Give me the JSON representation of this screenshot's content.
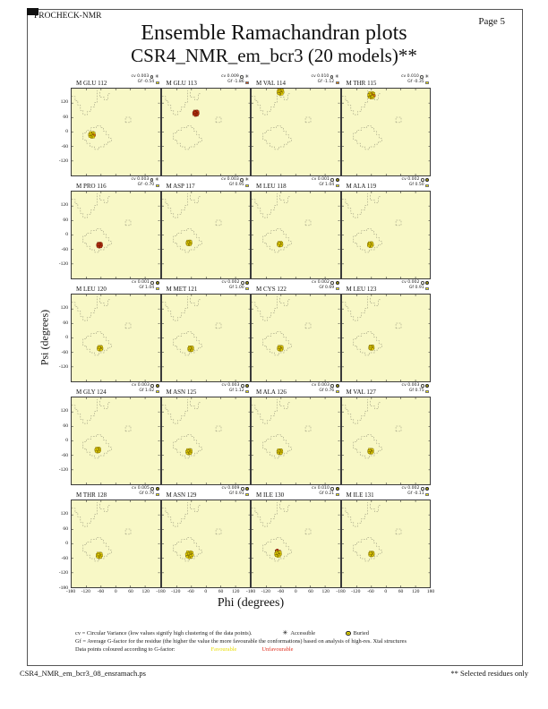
{
  "page": {
    "app_name": "PROCHECK-NMR",
    "page_label": "Page  5",
    "title": "Ensemble Ramachandran plots",
    "subtitle": "CSR4_NMR_em_bcr3 (20 models)**",
    "footer_filename": "CSR4_NMR_em_bcr3_08_ensramach.ps",
    "footer_note": "** Selected residues only"
  },
  "axes": {
    "x_label": "Phi (degrees)",
    "y_label": "Psi (degrees)",
    "x_ticks": [
      -180,
      -120,
      -60,
      0,
      60,
      120
    ],
    "x_end_tick": 180,
    "y_ticks": [
      120,
      60,
      0,
      -60,
      -120
    ],
    "y_end_tick": -180
  },
  "legend": {
    "line1": "cv = Circular Variance (low values signify high clustering of the data points).",
    "accessible_label": "Accessible",
    "buried_label": "Buried",
    "line2": "Gf = Average G-factor for the residue (the higher the value the more favourable the conformations) based on analysis of high-res. Xtal structures",
    "line3": "Data points coloured according to G-factor:",
    "favourable_label": "Favourable",
    "unfavourable_label": "Unfavourable",
    "favourable_color": "#e8dc00",
    "unfavourable_color": "#e03020"
  },
  "colors": {
    "plot_background": "#f8f8c6",
    "contour": "#8a8a72",
    "favourable_point": "#e3cf00",
    "unfavourable_point": "#bf3410",
    "gf_yellow": "#f2ea00",
    "gf_orange": "#ee8500",
    "gf_red": "#dd4a10"
  },
  "chart_data": {
    "type": "scatter",
    "title": "Ensemble Ramachandran plots",
    "subtitle": "CSR4_NMR_em_bcr3 (20 models)**",
    "xlabel": "Phi (degrees)",
    "ylabel": "Psi (degrees)",
    "xlim": [
      -180,
      180
    ],
    "ylim": [
      -180,
      180
    ],
    "grid": false,
    "layout": "4 columns x 5 rows of per-residue subplots",
    "subplots": [
      {
        "label": "M GLU 112",
        "cv_text": "cv 0.003",
        "gf_text": "Gf -0.54",
        "gf_color": "#f2ea00",
        "access": "accessible",
        "blob": {
          "phi": -97,
          "psi": -12,
          "style": "yellow-orange",
          "spread": 1.1
        }
      },
      {
        "label": "M GLU 113",
        "cv_text": "cv 0.009",
        "gf_text": "Gf -1.86",
        "gf_color": "#dd4a10",
        "access": "accessible",
        "blob": {
          "phi": -42,
          "psi": 78,
          "style": "red",
          "spread": 1.0
        }
      },
      {
        "label": "M VAL 114",
        "cv_text": "cv 0.010",
        "gf_text": "Gf -1.12",
        "gf_color": "#ee8500",
        "access": "accessible",
        "blob": {
          "phi": -62,
          "psi": 166,
          "style": "mixed",
          "spread": 1.1
        }
      },
      {
        "label": "M THR 115",
        "cv_text": "cv 0.010",
        "gf_text": "Gf -0.35",
        "gf_color": "#f2ea00",
        "access": "accessible",
        "blob": {
          "phi": -60,
          "psi": 152,
          "style": "yellow-orange",
          "spread": 1.25
        }
      },
      {
        "label": "M PRO 116",
        "cv_text": "cv 0.003",
        "gf_text": "Gf -0.70",
        "gf_color": "#f2ea00",
        "access": "accessible",
        "blob": {
          "phi": -66,
          "psi": -42,
          "style": "red",
          "spread": 0.9
        }
      },
      {
        "label": "M ASP 117",
        "cv_text": "cv 0.003",
        "gf_text": "Gf 0.95",
        "gf_color": "#f2ea00",
        "access": "accessible",
        "blob": {
          "phi": -70,
          "psi": -33,
          "style": "yellow",
          "spread": 0.9
        }
      },
      {
        "label": "M LEU 118",
        "cv_text": "cv 0.001",
        "gf_text": "Gf 1.04",
        "gf_color": "#f2ea00",
        "access": "buried",
        "blob": {
          "phi": -64,
          "psi": -38,
          "style": "yellow",
          "spread": 0.85
        }
      },
      {
        "label": "M ALA 119",
        "cv_text": "cv 0.002",
        "gf_text": "Gf 0.50",
        "gf_color": "#f2ea00",
        "access": "buried",
        "blob": {
          "phi": -64,
          "psi": -40,
          "style": "yellow",
          "spread": 0.9
        }
      },
      {
        "label": "M LEU 120",
        "cv_text": "cv 0.001",
        "gf_text": "Gf 1.04",
        "gf_color": "#f2ea00",
        "access": "buried",
        "blob": {
          "phi": -64,
          "psi": -43,
          "style": "yellow",
          "spread": 0.85
        }
      },
      {
        "label": "M MET 121",
        "cv_text": "cv 0.002",
        "gf_text": "Gf 1.00",
        "gf_color": "#f2ea00",
        "access": "buried",
        "blob": {
          "phi": -63,
          "psi": -45,
          "style": "yellow",
          "spread": 0.9
        }
      },
      {
        "label": "M CYS 122",
        "cv_text": "cv 0.002",
        "gf_text": "Gf 0.69",
        "gf_color": "#f2ea00",
        "access": "buried",
        "blob": {
          "phi": -63,
          "psi": -43,
          "style": "yellow",
          "spread": 0.9
        }
      },
      {
        "label": "M LEU 123",
        "cv_text": "cv 0.002",
        "gf_text": "Gf 0.91",
        "gf_color": "#f2ea00",
        "access": "buried",
        "blob": {
          "phi": -60,
          "psi": -40,
          "style": "yellow",
          "spread": 0.8
        }
      },
      {
        "label": "M GLY 124",
        "cv_text": "cv 0.003",
        "gf_text": "Gf 1.02",
        "gf_color": "#f2ea00",
        "access": "buried",
        "blob": {
          "phi": -73,
          "psi": -38,
          "style": "yellow",
          "spread": 0.9
        }
      },
      {
        "label": "M ASN 125",
        "cv_text": "cv 0.003",
        "gf_text": "Gf 1.12",
        "gf_color": "#f2ea00",
        "access": "buried",
        "blob": {
          "phi": -70,
          "psi": -45,
          "style": "yellow",
          "spread": 1.0
        }
      },
      {
        "label": "M ALA 126",
        "cv_text": "cv 0.003",
        "gf_text": "Gf 0.76",
        "gf_color": "#f2ea00",
        "access": "buried",
        "blob": {
          "phi": -65,
          "psi": -45,
          "style": "yellow",
          "spread": 0.9
        }
      },
      {
        "label": "M VAL 127",
        "cv_text": "cv 0.003",
        "gf_text": "Gf 0.75",
        "gf_color": "#f2ea00",
        "access": "buried",
        "blob": {
          "phi": -63,
          "psi": -43,
          "style": "yellow",
          "spread": 0.9
        }
      },
      {
        "label": "M THR 128",
        "cv_text": "cv 0.005",
        "gf_text": "Gf 0.70",
        "gf_color": "#f2ea00",
        "access": "buried",
        "blob": {
          "phi": -67,
          "psi": -48,
          "style": "yellow",
          "spread": 1.0
        }
      },
      {
        "label": "M ASN 129",
        "cv_text": "cv 0.009",
        "gf_text": "Gf 0.91",
        "gf_color": "#f2ea00",
        "access": "buried",
        "blob": {
          "phi": -68,
          "psi": -45,
          "style": "yellow",
          "spread": 1.35
        }
      },
      {
        "label": "M ILE 130",
        "cv_text": "cv 0.010",
        "gf_text": "Gf 0.21",
        "gf_color": "#f2ea00",
        "access": "buried",
        "blob": {
          "phi": -72,
          "psi": -42,
          "style": "mixed",
          "spread": 1.1
        }
      },
      {
        "label": "M ILE 131",
        "cv_text": "cv 0.002",
        "gf_text": "Gf -0.11",
        "gf_color": "#f2ea00",
        "access": "buried",
        "blob": {
          "phi": -60,
          "psi": -42,
          "style": "yellow",
          "spread": 0.85
        }
      }
    ]
  }
}
